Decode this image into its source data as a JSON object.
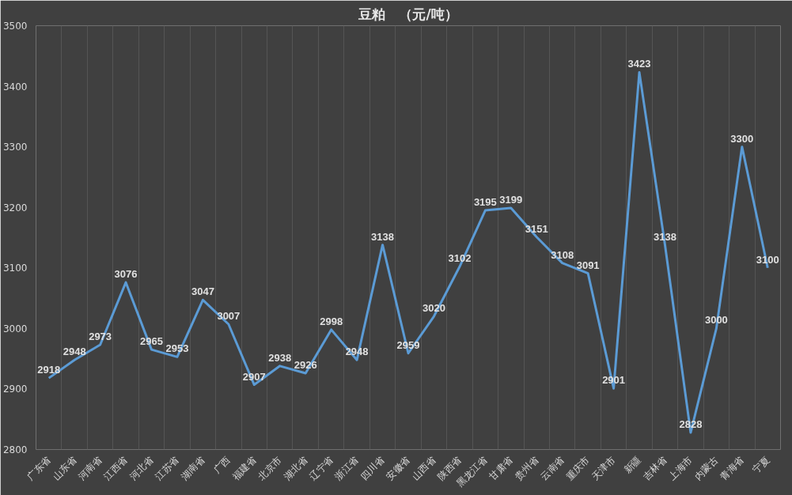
{
  "chart_data": {
    "type": "line",
    "title": "豆粕　（元/吨）",
    "categories": [
      "广东省",
      "山东省",
      "河南省",
      "江西省",
      "河北省",
      "江苏省",
      "湖南省",
      "广西",
      "福建省",
      "北京市",
      "湖北省",
      "辽宁省",
      "浙江省",
      "四川省",
      "安徽省",
      "山西省",
      "陕西省",
      "黑龙江省",
      "甘肃省",
      "贵州省",
      "云南省",
      "重庆市",
      "天津市",
      "新疆",
      "吉林省",
      "上海市",
      "内蒙古",
      "青海省",
      "宁夏"
    ],
    "series": [
      {
        "color": "#5b9bd5",
        "values": [
          2918,
          2948,
          2973,
          3076,
          2965,
          2953,
          3047,
          3007,
          2907,
          2938,
          2926,
          2998,
          2948,
          3138,
          2959,
          3020,
          3102,
          3195,
          3199,
          3151,
          3108,
          3091,
          2901,
          3423,
          3138,
          2828,
          3000,
          3300,
          3100
        ]
      }
    ],
    "ylim": [
      2800,
      3500
    ],
    "yticks": [
      2800,
      2900,
      3000,
      3100,
      3200,
      3300,
      3400,
      3500
    ],
    "grid": "x",
    "marker": "none",
    "line_style": "solid",
    "data_labels": true
  }
}
